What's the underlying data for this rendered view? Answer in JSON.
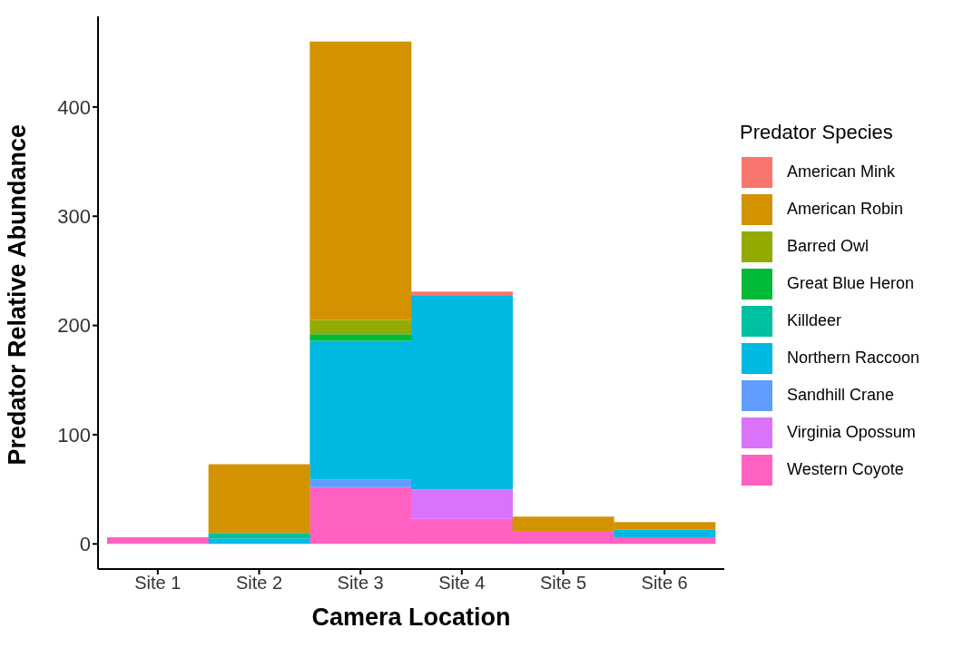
{
  "chart_data": {
    "type": "bar",
    "xlabel": "Camera Location",
    "ylabel": "Predator Relative Abundance",
    "legend_title": "Predator Species",
    "categories": [
      "Site 1",
      "Site 2",
      "Site 3",
      "Site 4",
      "Site 5",
      "Site 6"
    ],
    "stacked": true,
    "ylim": [
      -23,
      483
    ],
    "yticks": [
      0,
      100,
      200,
      300,
      400
    ],
    "grid": false,
    "legend": "right",
    "series": [
      {
        "name": "Western Coyote",
        "color": "#ff61c3",
        "values": [
          6,
          null,
          52,
          23,
          12,
          6
        ]
      },
      {
        "name": "Virginia Opossum",
        "color": "#db72fb",
        "values": [
          null,
          null,
          null,
          27,
          null,
          null
        ]
      },
      {
        "name": "Sandhill Crane",
        "color": "#619cff",
        "values": [
          null,
          null,
          7,
          null,
          null,
          null
        ]
      },
      {
        "name": "Northern Raccoon",
        "color": "#00b9e3",
        "values": [
          null,
          5,
          127,
          177,
          null,
          7
        ]
      },
      {
        "name": "Killdeer",
        "color": "#00c19f",
        "values": [
          null,
          5,
          null,
          null,
          null,
          null
        ]
      },
      {
        "name": "Great Blue Heron",
        "color": "#00ba38",
        "values": [
          null,
          null,
          6,
          null,
          null,
          null
        ]
      },
      {
        "name": "Barred Owl",
        "color": "#93aa00",
        "values": [
          null,
          null,
          13,
          null,
          null,
          null
        ]
      },
      {
        "name": "American Robin",
        "color": "#d39200",
        "values": [
          null,
          63,
          255,
          null,
          13,
          7
        ]
      },
      {
        "name": "American Mink",
        "color": "#f8766d",
        "values": [
          null,
          null,
          null,
          4,
          null,
          null
        ]
      }
    ]
  }
}
